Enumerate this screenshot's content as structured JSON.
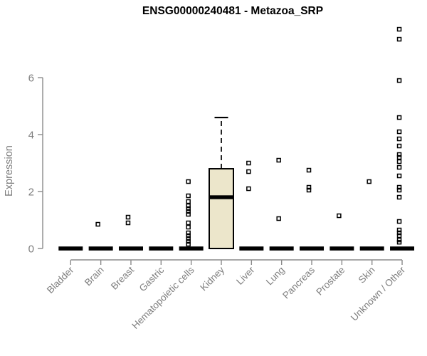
{
  "chart_data": {
    "type": "box",
    "title": "ENSG00000240481 - Metazoa_SRP",
    "ylabel": "Expression",
    "yticks": [
      0,
      2,
      4,
      6
    ],
    "ylim": [
      0,
      7.9
    ],
    "grid": false,
    "categories": [
      "Bladder",
      "Brain",
      "Breast",
      "Gastric",
      "Hematopoietic cells",
      "Kidney",
      "Liver",
      "Lung",
      "Pancreas",
      "Prostate",
      "Skin",
      "Unknown / Other"
    ],
    "boxes": [
      {
        "category": "Bladder",
        "q1": 0,
        "median": 0,
        "q3": 0,
        "whisker_low": 0,
        "whisker_high": 0,
        "outliers": []
      },
      {
        "category": "Brain",
        "q1": 0,
        "median": 0,
        "q3": 0,
        "whisker_low": 0,
        "whisker_high": 0,
        "outliers": [
          0.85
        ]
      },
      {
        "category": "Breast",
        "q1": 0,
        "median": 0,
        "q3": 0,
        "whisker_low": 0,
        "whisker_high": 0,
        "outliers": [
          1.1,
          0.9
        ]
      },
      {
        "category": "Gastric",
        "q1": 0,
        "median": 0,
        "q3": 0,
        "whisker_low": 0,
        "whisker_high": 0,
        "outliers": []
      },
      {
        "category": "Hematopoietic cells",
        "q1": 0,
        "median": 0,
        "q3": 0,
        "whisker_low": 0,
        "whisker_high": 0,
        "outliers": [
          2.35,
          1.85,
          1.65,
          1.5,
          1.4,
          1.3,
          1.2,
          0.9,
          0.75,
          0.55,
          0.45,
          0.35,
          0.25,
          0.15
        ]
      },
      {
        "category": "Kidney",
        "q1": 0,
        "median": 1.8,
        "q3": 2.8,
        "whisker_low": 0,
        "whisker_high": 4.6,
        "outliers": []
      },
      {
        "category": "Liver",
        "q1": 0,
        "median": 0,
        "q3": 0,
        "whisker_low": 0,
        "whisker_high": 0,
        "outliers": [
          3.0,
          2.7,
          2.1
        ]
      },
      {
        "category": "Lung",
        "q1": 0,
        "median": 0,
        "q3": 0,
        "whisker_low": 0,
        "whisker_high": 0,
        "outliers": [
          3.1,
          1.05
        ]
      },
      {
        "category": "Pancreas",
        "q1": 0,
        "median": 0,
        "q3": 0,
        "whisker_low": 0,
        "whisker_high": 0,
        "outliers": [
          2.75,
          2.15,
          2.05
        ]
      },
      {
        "category": "Prostate",
        "q1": 0,
        "median": 0,
        "q3": 0,
        "whisker_low": 0,
        "whisker_high": 0,
        "outliers": [
          1.15
        ]
      },
      {
        "category": "Skin",
        "q1": 0,
        "median": 0,
        "q3": 0,
        "whisker_low": 0,
        "whisker_high": 0,
        "outliers": [
          2.35
        ]
      },
      {
        "category": "Unknown / Other",
        "q1": 0,
        "median": 0,
        "q3": 0,
        "whisker_low": 0,
        "whisker_high": 0,
        "outliers": [
          7.7,
          7.35,
          5.9,
          4.6,
          4.1,
          3.85,
          3.6,
          3.3,
          3.2,
          3.05,
          2.85,
          2.55,
          2.15,
          2.05,
          1.8,
          0.95,
          0.65,
          0.55,
          0.45,
          0.3,
          0.22
        ]
      }
    ],
    "colors": {
      "box_fill": "#ECE6CB",
      "box_stroke": "#000000",
      "median": "#000000",
      "point": "#000000",
      "axis_line": "#8A8A8A",
      "axis_text": "#7E7E7E",
      "title_text": "#000000",
      "background": "#FFFFFF"
    }
  }
}
